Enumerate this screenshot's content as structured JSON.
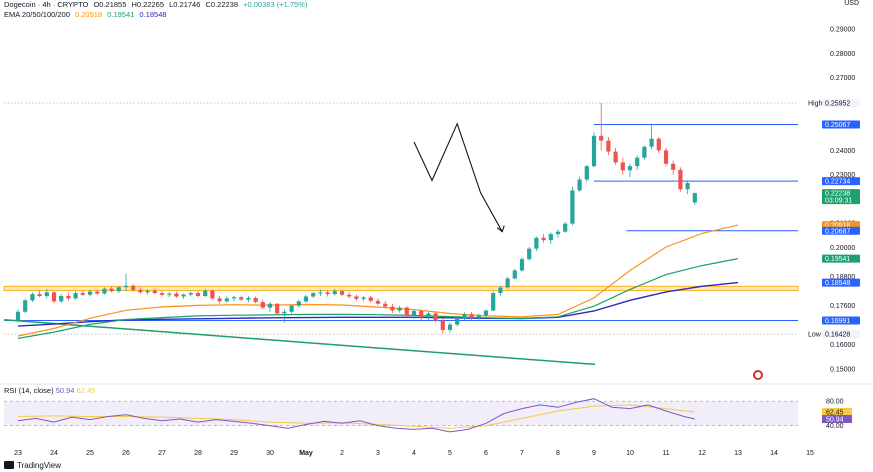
{
  "header": {
    "symbol": "Dogecoin · 4h · CRYPTO",
    "open": "O0.21855",
    "high": "H0.22265",
    "low": "L0.21746",
    "close": "C0.22238",
    "change": "+0.00383 (+1.75%)",
    "ema_label": "EMA 20/50/100/200",
    "ema_values": [
      "0.20918",
      "0.19541",
      "0.18548"
    ],
    "currency": "USD"
  },
  "colors": {
    "up": "#26a69a",
    "down": "#ef5350",
    "ema20": "#f7931a",
    "ema50": "#1e9f6e",
    "ema100": "#2b2bbf",
    "ema200": "#1a1a8c",
    "level_line": "#2962ff",
    "support_band": "#f7a500",
    "trendline": "#1e9f6e",
    "rsi_line": "#7e57c2",
    "rsi_ma": "#f7c948"
  },
  "chart_data": {
    "type": "candlestick",
    "ylim": [
      0.1462,
      0.2995
    ],
    "y_ticks": [
      "0.29000",
      "0.28000",
      "0.27000",
      "0.25000",
      "0.24000",
      "0.23000",
      "0.21000",
      "0.20000",
      "0.18800",
      "0.17600",
      "0.16000",
      "0.15000"
    ],
    "x_ticks": [
      "23",
      "24",
      "25",
      "26",
      "27",
      "28",
      "29",
      "30",
      "May",
      "2",
      "3",
      "4",
      "5",
      "6",
      "7",
      "8",
      "9",
      "10",
      "11",
      "12",
      "13",
      "14",
      "15"
    ],
    "price_labels": [
      {
        "label": "High",
        "value": "0.25952",
        "y": 0.25952,
        "kind": "plain"
      },
      {
        "label": "",
        "value": "0.25067",
        "y": 0.25067,
        "kind": "blue"
      },
      {
        "label": "",
        "value": "0.22734",
        "y": 0.22734,
        "kind": "blue"
      },
      {
        "label": "",
        "value": "0.22238",
        "y": 0.22238,
        "kind": "green",
        "extra": "03:09:31"
      },
      {
        "label": "",
        "value": "0.20918",
        "y": 0.20918,
        "kind": "orange"
      },
      {
        "label": "",
        "value": "0.20687",
        "y": 0.20687,
        "kind": "blue"
      },
      {
        "label": "",
        "value": "0.19541",
        "y": 0.19541,
        "kind": "green"
      },
      {
        "label": "",
        "value": "0.18548",
        "y": 0.18548,
        "kind": "blue"
      },
      {
        "label": "",
        "value": "0.16991",
        "y": 0.16991,
        "kind": "blue"
      },
      {
        "label": "Low",
        "value": "0.16428",
        "y": 0.16428,
        "kind": "plain"
      }
    ],
    "horizontal_levels": [
      0.25067,
      0.22734,
      0.20687,
      0.16991
    ],
    "support_band": [
      0.1822,
      0.184
    ],
    "trendline": {
      "from": [
        0,
        0.1702
      ],
      "to": [
        0.68,
        0.1518
      ]
    },
    "pattern_zigzag": [
      [
        11.0,
        0.2435
      ],
      [
        11.5,
        0.2276
      ],
      [
        12.2,
        0.251
      ],
      [
        12.85,
        0.2225
      ],
      [
        13.45,
        0.2065
      ]
    ],
    "ema": {
      "ema20": [
        [
          0,
          0.1635
        ],
        [
          1,
          0.1666
        ],
        [
          2,
          0.1708
        ],
        [
          3,
          0.1741
        ],
        [
          4,
          0.1755
        ],
        [
          5,
          0.1761
        ],
        [
          6,
          0.1764
        ],
        [
          7,
          0.1762
        ],
        [
          8,
          0.1765
        ],
        [
          9,
          0.1763
        ],
        [
          10,
          0.1754
        ],
        [
          11,
          0.1744
        ],
        [
          12,
          0.1728
        ],
        [
          13,
          0.1718
        ],
        [
          14,
          0.1714
        ],
        [
          15,
          0.1724
        ],
        [
          16,
          0.1792
        ],
        [
          17,
          0.1905
        ],
        [
          18,
          0.2002
        ],
        [
          19,
          0.2058
        ],
        [
          20,
          0.2092
        ]
      ],
      "ema50": [
        [
          0,
          0.1625
        ],
        [
          1,
          0.1651
        ],
        [
          2,
          0.1683
        ],
        [
          3,
          0.1703
        ],
        [
          4,
          0.1711
        ],
        [
          5,
          0.1718
        ],
        [
          6,
          0.1721
        ],
        [
          7,
          0.1722
        ],
        [
          8,
          0.1724
        ],
        [
          9,
          0.1724
        ],
        [
          10,
          0.1723
        ],
        [
          11,
          0.172
        ],
        [
          12,
          0.1715
        ],
        [
          13,
          0.171
        ],
        [
          14,
          0.1707
        ],
        [
          15,
          0.1714
        ],
        [
          16,
          0.1758
        ],
        [
          17,
          0.1827
        ],
        [
          18,
          0.1888
        ],
        [
          19,
          0.1925
        ],
        [
          20,
          0.1954
        ]
      ],
      "ema100": [
        [
          0,
          0.1676
        ],
        [
          1,
          0.1684
        ],
        [
          2,
          0.1694
        ],
        [
          3,
          0.1702
        ],
        [
          4,
          0.1704
        ],
        [
          5,
          0.1706
        ],
        [
          6,
          0.1708
        ],
        [
          7,
          0.171
        ],
        [
          8,
          0.1711
        ],
        [
          9,
          0.1712
        ],
        [
          10,
          0.1712
        ],
        [
          11,
          0.1712
        ],
        [
          12,
          0.171
        ],
        [
          13,
          0.1708
        ],
        [
          14,
          0.1707
        ],
        [
          15,
          0.1712
        ],
        [
          16,
          0.1738
        ],
        [
          17,
          0.1782
        ],
        [
          18,
          0.1817
        ],
        [
          19,
          0.184
        ],
        [
          20,
          0.1855
        ]
      ]
    },
    "candles_note": "approximate 4h candles read from chart, x in days from Apr 23",
    "candles": [
      [
        0.0,
        0.17,
        0.1745,
        0.1692,
        0.1735
      ],
      [
        0.2,
        0.1735,
        0.179,
        0.173,
        0.1782
      ],
      [
        0.4,
        0.1782,
        0.1815,
        0.1775,
        0.1808
      ],
      [
        0.6,
        0.1808,
        0.1822,
        0.1795,
        0.18
      ],
      [
        0.8,
        0.18,
        0.183,
        0.179,
        0.1815
      ],
      [
        1.0,
        0.1815,
        0.182,
        0.177,
        0.1778
      ],
      [
        1.2,
        0.1778,
        0.181,
        0.1772,
        0.18
      ],
      [
        1.4,
        0.18,
        0.1812,
        0.178,
        0.179
      ],
      [
        1.6,
        0.179,
        0.182,
        0.1785,
        0.1812
      ],
      [
        1.8,
        0.1812,
        0.1822,
        0.18,
        0.1805
      ],
      [
        2.0,
        0.1805,
        0.1826,
        0.1798,
        0.1818
      ],
      [
        2.2,
        0.1818,
        0.1825,
        0.1805,
        0.181
      ],
      [
        2.4,
        0.181,
        0.1835,
        0.1805,
        0.183
      ],
      [
        2.6,
        0.183,
        0.1838,
        0.1815,
        0.182
      ],
      [
        2.8,
        0.182,
        0.184,
        0.1812,
        0.1836
      ],
      [
        3.0,
        0.1836,
        0.1892,
        0.182,
        0.1842
      ],
      [
        3.2,
        0.1842,
        0.185,
        0.1818,
        0.1825
      ],
      [
        3.4,
        0.1825,
        0.1835,
        0.181,
        0.1815
      ],
      [
        3.6,
        0.1815,
        0.1828,
        0.1805,
        0.1822
      ],
      [
        3.8,
        0.1822,
        0.183,
        0.1808,
        0.1812
      ],
      [
        4.0,
        0.1812,
        0.1822,
        0.1798,
        0.1805
      ],
      [
        4.2,
        0.1805,
        0.1815,
        0.1795,
        0.181
      ],
      [
        4.4,
        0.181,
        0.1818,
        0.1792,
        0.1798
      ],
      [
        4.6,
        0.1798,
        0.181,
        0.1788,
        0.1806
      ],
      [
        4.8,
        0.1806,
        0.1818,
        0.1798,
        0.1812
      ],
      [
        5.0,
        0.1812,
        0.182,
        0.1795,
        0.18
      ],
      [
        5.2,
        0.18,
        0.183,
        0.1795,
        0.1822
      ],
      [
        5.4,
        0.1822,
        0.1826,
        0.1785,
        0.179
      ],
      [
        5.6,
        0.179,
        0.18,
        0.177,
        0.1778
      ],
      [
        5.8,
        0.1778,
        0.1798,
        0.1772,
        0.179
      ],
      [
        6.0,
        0.179,
        0.18,
        0.1778,
        0.1795
      ],
      [
        6.2,
        0.1795,
        0.1802,
        0.178,
        0.1785
      ],
      [
        6.4,
        0.1785,
        0.18,
        0.1775,
        0.1792
      ],
      [
        6.6,
        0.1792,
        0.1798,
        0.177,
        0.1775
      ],
      [
        6.8,
        0.1775,
        0.1785,
        0.1745,
        0.1752
      ],
      [
        7.0,
        0.1752,
        0.1775,
        0.1735,
        0.1768
      ],
      [
        7.2,
        0.1768,
        0.177,
        0.172,
        0.1728
      ],
      [
        7.4,
        0.1728,
        0.1745,
        0.169,
        0.1735
      ],
      [
        7.6,
        0.1735,
        0.1765,
        0.1728,
        0.176
      ],
      [
        7.8,
        0.176,
        0.1785,
        0.1752,
        0.1778
      ],
      [
        8.0,
        0.1778,
        0.1805,
        0.177,
        0.1798
      ],
      [
        8.2,
        0.1798,
        0.1818,
        0.1792,
        0.1812
      ],
      [
        8.4,
        0.1812,
        0.1826,
        0.18,
        0.1815
      ],
      [
        8.6,
        0.1815,
        0.1822,
        0.1798,
        0.1808
      ],
      [
        8.8,
        0.1808,
        0.183,
        0.1802,
        0.182
      ],
      [
        9.0,
        0.182,
        0.1825,
        0.18,
        0.1805
      ],
      [
        9.2,
        0.1805,
        0.1815,
        0.179,
        0.1798
      ],
      [
        9.4,
        0.1798,
        0.1806,
        0.178,
        0.1788
      ],
      [
        9.6,
        0.1788,
        0.18,
        0.1778,
        0.1794
      ],
      [
        9.8,
        0.1794,
        0.18,
        0.1772,
        0.178
      ],
      [
        10.0,
        0.178,
        0.179,
        0.176,
        0.1768
      ],
      [
        10.2,
        0.1768,
        0.178,
        0.175,
        0.1756
      ],
      [
        10.4,
        0.1756,
        0.1768,
        0.173,
        0.174
      ],
      [
        10.6,
        0.174,
        0.176,
        0.1732,
        0.1752
      ],
      [
        10.8,
        0.1752,
        0.1758,
        0.1715,
        0.172
      ],
      [
        11.0,
        0.172,
        0.1745,
        0.1705,
        0.1738
      ],
      [
        11.2,
        0.1738,
        0.1742,
        0.17,
        0.1712
      ],
      [
        11.4,
        0.1712,
        0.1735,
        0.17,
        0.1728
      ],
      [
        11.6,
        0.1728,
        0.1732,
        0.169,
        0.1698
      ],
      [
        11.8,
        0.1698,
        0.1708,
        0.1645,
        0.166
      ],
      [
        12.0,
        0.166,
        0.169,
        0.165,
        0.1682
      ],
      [
        12.2,
        0.1682,
        0.1712,
        0.1675,
        0.1705
      ],
      [
        12.4,
        0.1705,
        0.1732,
        0.1698,
        0.1725
      ],
      [
        12.6,
        0.1725,
        0.1735,
        0.17,
        0.171
      ],
      [
        12.8,
        0.171,
        0.1728,
        0.1702,
        0.172
      ],
      [
        13.0,
        0.172,
        0.1745,
        0.1712,
        0.174
      ],
      [
        13.2,
        0.174,
        0.182,
        0.1738,
        0.1812
      ],
      [
        13.4,
        0.1812,
        0.1842,
        0.1802,
        0.1835
      ],
      [
        13.6,
        0.1835,
        0.188,
        0.183,
        0.1872
      ],
      [
        13.8,
        0.1872,
        0.1912,
        0.1868,
        0.1905
      ],
      [
        14.0,
        0.1905,
        0.196,
        0.19,
        0.1952
      ],
      [
        14.2,
        0.1952,
        0.2002,
        0.1945,
        0.1995
      ],
      [
        14.4,
        0.1995,
        0.2045,
        0.1985,
        0.204
      ],
      [
        14.6,
        0.204,
        0.2055,
        0.202,
        0.203
      ],
      [
        14.8,
        0.203,
        0.2062,
        0.2015,
        0.2055
      ],
      [
        15.0,
        0.2055,
        0.2075,
        0.204,
        0.2065
      ],
      [
        15.2,
        0.2065,
        0.2105,
        0.206,
        0.2098
      ],
      [
        15.4,
        0.2098,
        0.225,
        0.209,
        0.2235
      ],
      [
        15.6,
        0.2235,
        0.229,
        0.223,
        0.228
      ],
      [
        15.8,
        0.228,
        0.234,
        0.227,
        0.2335
      ],
      [
        16.0,
        0.2335,
        0.2475,
        0.233,
        0.246
      ],
      [
        16.2,
        0.246,
        0.2595,
        0.24,
        0.244
      ],
      [
        16.4,
        0.244,
        0.2455,
        0.238,
        0.2395
      ],
      [
        16.6,
        0.2395,
        0.241,
        0.234,
        0.235
      ],
      [
        16.8,
        0.235,
        0.237,
        0.23,
        0.2318
      ],
      [
        17.0,
        0.2318,
        0.2345,
        0.229,
        0.2335
      ],
      [
        17.2,
        0.2335,
        0.2378,
        0.232,
        0.237
      ],
      [
        17.4,
        0.237,
        0.242,
        0.2362,
        0.2415
      ],
      [
        17.6,
        0.2415,
        0.251,
        0.2405,
        0.2448
      ],
      [
        17.8,
        0.2448,
        0.2455,
        0.239,
        0.24
      ],
      [
        18.0,
        0.24,
        0.241,
        0.2335,
        0.2345
      ],
      [
        18.2,
        0.2345,
        0.2358,
        0.23,
        0.232
      ],
      [
        18.4,
        0.232,
        0.233,
        0.223,
        0.224
      ],
      [
        18.6,
        0.224,
        0.2272,
        0.222,
        0.2265
      ],
      [
        18.8,
        0.2185,
        0.2227,
        0.2175,
        0.2224
      ]
    ]
  },
  "rsi": {
    "label": "RSI (14, close)",
    "value": "50.94",
    "ma_value": "62.45",
    "levels": [
      "80.00",
      "40.00"
    ],
    "ylim": [
      20,
      95
    ],
    "rsi_series": [
      [
        0,
        48
      ],
      [
        0.5,
        52
      ],
      [
        1,
        46
      ],
      [
        1.5,
        54
      ],
      [
        2,
        50
      ],
      [
        2.5,
        55
      ],
      [
        3,
        58
      ],
      [
        3.5,
        52
      ],
      [
        4,
        48
      ],
      [
        4.5,
        51
      ],
      [
        5,
        46
      ],
      [
        5.5,
        50
      ],
      [
        6,
        47
      ],
      [
        6.5,
        44
      ],
      [
        7,
        40
      ],
      [
        7.5,
        36
      ],
      [
        8,
        42
      ],
      [
        8.5,
        47
      ],
      [
        9,
        44
      ],
      [
        9.5,
        48
      ],
      [
        10,
        40
      ],
      [
        10.5,
        36
      ],
      [
        11,
        34
      ],
      [
        11.5,
        36
      ],
      [
        12,
        30
      ],
      [
        12.5,
        34
      ],
      [
        13,
        44
      ],
      [
        13.5,
        60
      ],
      [
        14,
        68
      ],
      [
        14.5,
        74
      ],
      [
        15,
        70
      ],
      [
        15.5,
        78
      ],
      [
        16,
        84
      ],
      [
        16.5,
        70
      ],
      [
        17,
        68
      ],
      [
        17.5,
        74
      ],
      [
        18,
        64
      ],
      [
        18.5,
        55
      ],
      [
        18.8,
        50.94
      ]
    ],
    "ma_series": [
      [
        0,
        55
      ],
      [
        1,
        56
      ],
      [
        2,
        55
      ],
      [
        3,
        55
      ],
      [
        4,
        54
      ],
      [
        5,
        52
      ],
      [
        6,
        50
      ],
      [
        7,
        46
      ],
      [
        8,
        44
      ],
      [
        9,
        45
      ],
      [
        10,
        42
      ],
      [
        11,
        39
      ],
      [
        12,
        36
      ],
      [
        13,
        40
      ],
      [
        14,
        52
      ],
      [
        15,
        64
      ],
      [
        16,
        72
      ],
      [
        17,
        74
      ],
      [
        18,
        68
      ],
      [
        18.8,
        62.45
      ]
    ]
  },
  "footer": {
    "brand": "TradingView"
  }
}
